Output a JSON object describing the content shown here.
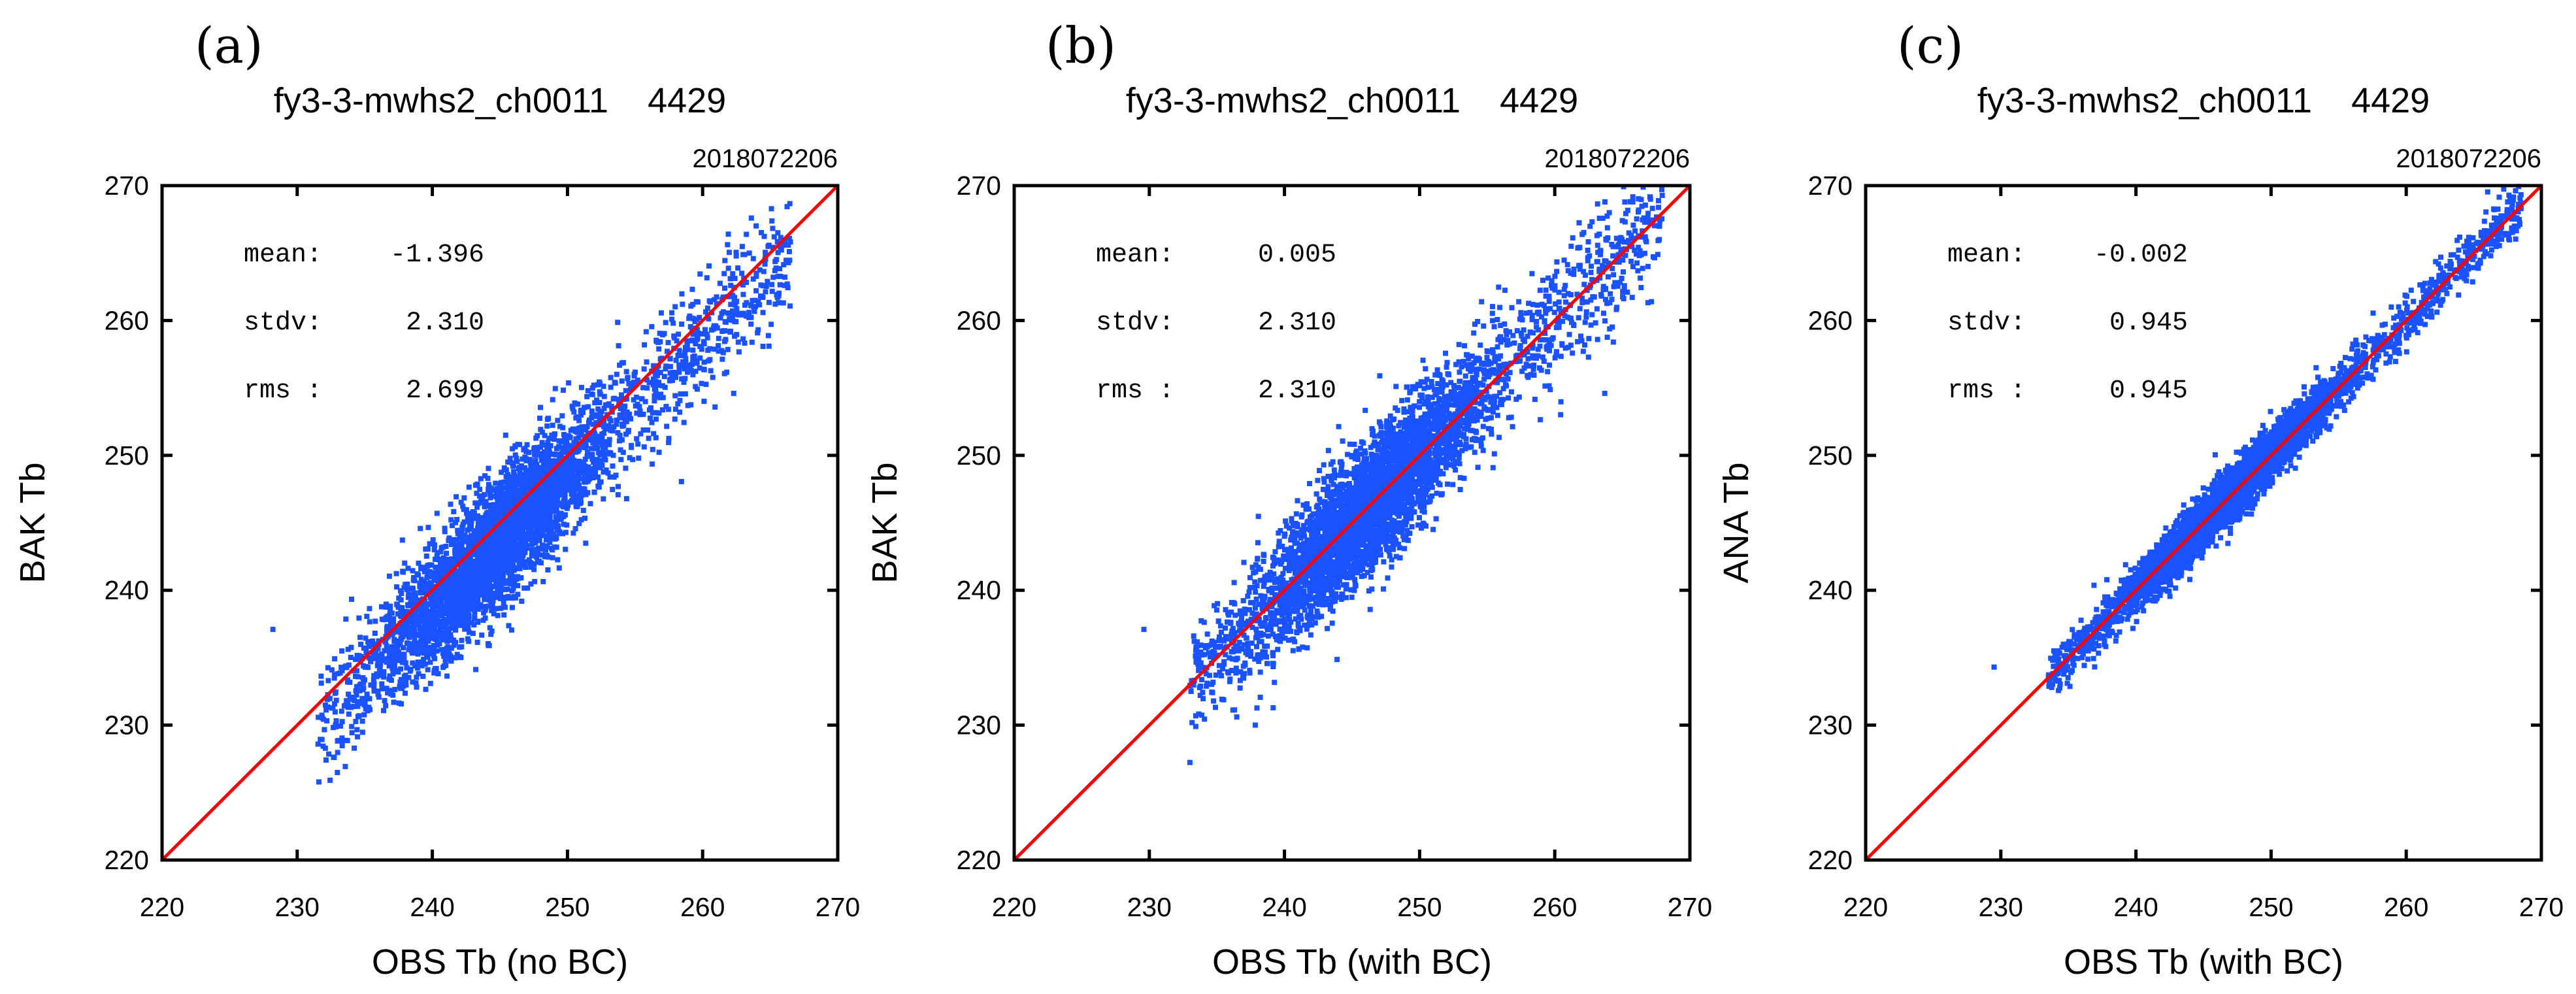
{
  "chart_data": [
    {
      "type": "scatter",
      "panel_label": "(a)",
      "title": "fy3-3-mwhs2_ch0011    4429",
      "date": "2018072206",
      "xlabel": "OBS Tb (no BC)",
      "ylabel": "BAK Tb",
      "xlim": [
        220,
        270
      ],
      "ylim": [
        220,
        270
      ],
      "xticks": [
        220,
        230,
        240,
        250,
        260,
        270
      ],
      "yticks": [
        220,
        230,
        240,
        250,
        260,
        270
      ],
      "stats": [
        {
          "label": "mean:",
          "value": "-1.396"
        },
        {
          "label": "stdv:",
          "value": "2.310"
        },
        {
          "label": "rms :",
          "value": "2.699"
        }
      ],
      "reference_line": {
        "from": [
          220,
          220
        ],
        "to": [
          270,
          270
        ],
        "color": "#ff0000"
      },
      "point_color": "#1a52ff",
      "point_count": 4429,
      "bias": -1.396,
      "spread": 2.31,
      "x_range": [
        231.5,
        266.5
      ],
      "outliers": [
        [
          228.2,
          237.1
        ],
        [
          265.3,
          266.2
        ],
        [
          261.9,
          266.4
        ],
        [
          262.3,
          254.6
        ]
      ]
    },
    {
      "type": "scatter",
      "panel_label": "(b)",
      "title": "fy3-3-mwhs2_ch0011    4429",
      "date": "2018072206",
      "xlabel": "OBS Tb (with BC)",
      "ylabel": "BAK Tb",
      "xlim": [
        220,
        270
      ],
      "ylim": [
        220,
        270
      ],
      "xticks": [
        220,
        230,
        240,
        250,
        260,
        270
      ],
      "yticks": [
        220,
        230,
        240,
        250,
        260,
        270
      ],
      "stats": [
        {
          "label": "mean:",
          "value": "0.005"
        },
        {
          "label": "stdv:",
          "value": "2.310"
        },
        {
          "label": "rms :",
          "value": "2.310"
        }
      ],
      "reference_line": {
        "from": [
          220,
          220
        ],
        "to": [
          270,
          270
        ],
        "color": "#ff0000"
      },
      "point_color": "#1a52ff",
      "point_count": 4429,
      "bias": 0.005,
      "spread": 2.31,
      "x_range": [
        233,
        268
      ],
      "outliers": [
        [
          229.6,
          237.1
        ],
        [
          266.7,
          266.2
        ],
        [
          263.3,
          266.4
        ],
        [
          263.7,
          254.6
        ]
      ]
    },
    {
      "type": "scatter",
      "panel_label": "(c)",
      "title": "fy3-3-mwhs2_ch0011    4429",
      "date": "2018072206",
      "xlabel": "OBS Tb (with BC)",
      "ylabel": "ANA Tb",
      "xlim": [
        220,
        270
      ],
      "ylim": [
        220,
        270
      ],
      "xticks": [
        220,
        230,
        240,
        250,
        260,
        270
      ],
      "yticks": [
        220,
        230,
        240,
        250,
        260,
        270
      ],
      "stats": [
        {
          "label": "mean:",
          "value": "-0.002"
        },
        {
          "label": "stdv:",
          "value": "0.945"
        },
        {
          "label": "rms :",
          "value": "0.945"
        }
      ],
      "reference_line": {
        "from": [
          220,
          220
        ],
        "to": [
          270,
          270
        ],
        "color": "#ff0000"
      },
      "point_color": "#1a52ff",
      "point_count": 4429,
      "bias": -0.002,
      "spread": 0.945,
      "x_range": [
        233.5,
        268.5
      ],
      "outliers": [
        [
          229.5,
          234.3
        ],
        [
          268.5,
          268.3
        ]
      ]
    }
  ]
}
